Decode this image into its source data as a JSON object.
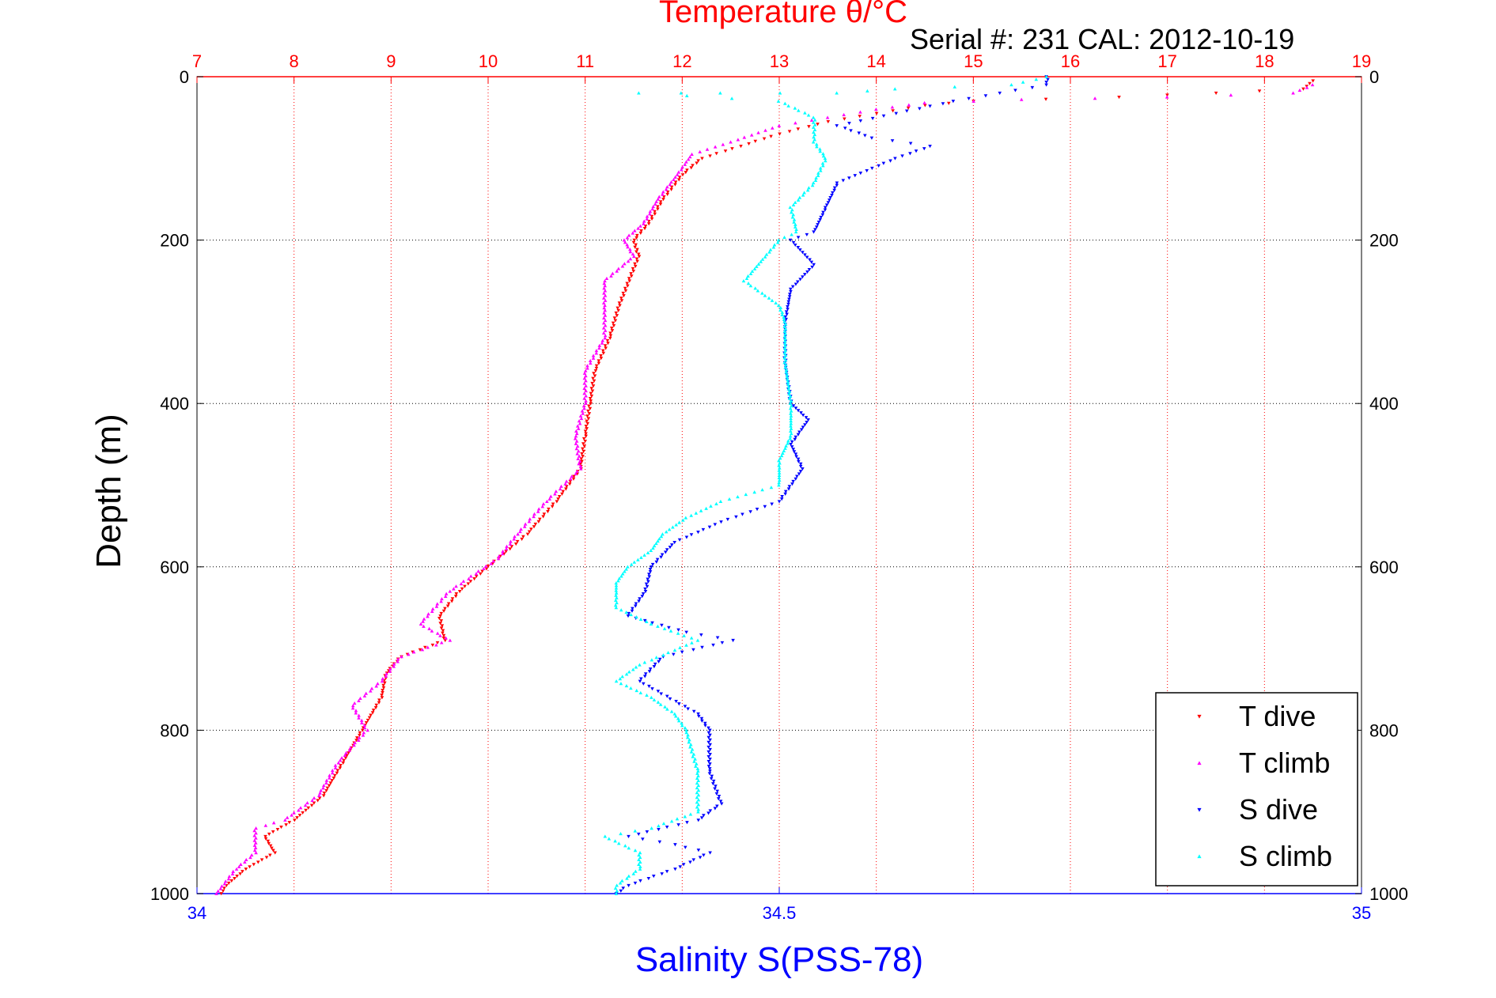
{
  "chart_data": {
    "type": "scatter",
    "title": "Temperature θ/°C",
    "serial_label": "Serial #: 231   CAL: 2012-10-19",
    "ylabel": "Depth (m)",
    "xlabel": "Salinity S(PSS-78)",
    "temperature_axis": {
      "range": [
        7,
        19
      ],
      "ticks": [
        7,
        8,
        9,
        10,
        11,
        12,
        13,
        14,
        15,
        16,
        17,
        18,
        19
      ]
    },
    "salinity_axis": {
      "range": [
        34,
        35
      ],
      "ticks": [
        "34",
        "34.5",
        "35"
      ]
    },
    "depth_axis": {
      "range": [
        0,
        1000
      ],
      "reversed": true,
      "ticks": [
        0,
        200,
        400,
        600,
        800,
        1000
      ]
    },
    "grid": true,
    "legend": {
      "placement": "bottom-right",
      "entries": [
        "T dive",
        "T climb",
        "S dive",
        "S climb"
      ]
    },
    "colors": {
      "temperature": "#ff0000",
      "salinity": "#0000ff",
      "t_dive": "#ff0000",
      "t_climb": "#ff00ff",
      "s_dive": "#0000ff",
      "s_climb": "#00ffff"
    },
    "series": [
      {
        "name": "T dive",
        "axis": "temperature",
        "color": "#ff0000",
        "marker": "triangle-down",
        "points": [
          [
            18.5,
            5
          ],
          [
            18.4,
            15
          ],
          [
            17.5,
            20
          ],
          [
            16.5,
            25
          ],
          [
            15,
            30
          ],
          [
            14.5,
            35
          ],
          [
            14,
            45
          ],
          [
            13.5,
            55
          ],
          [
            13,
            70
          ],
          [
            12.6,
            85
          ],
          [
            12.2,
            100
          ],
          [
            12,
            120
          ],
          [
            11.8,
            150
          ],
          [
            11.65,
            180
          ],
          [
            11.5,
            200
          ],
          [
            11.55,
            220
          ],
          [
            11.45,
            250
          ],
          [
            11.35,
            280
          ],
          [
            11.25,
            320
          ],
          [
            11.1,
            360
          ],
          [
            11.05,
            400
          ],
          [
            11.0,
            440
          ],
          [
            10.95,
            480
          ],
          [
            10.7,
            520
          ],
          [
            10.4,
            560
          ],
          [
            10.1,
            590
          ],
          [
            9.7,
            630
          ],
          [
            9.5,
            660
          ],
          [
            9.55,
            690
          ],
          [
            9.1,
            710
          ],
          [
            8.95,
            730
          ],
          [
            8.9,
            760
          ],
          [
            8.7,
            800
          ],
          [
            8.5,
            840
          ],
          [
            8.3,
            880
          ],
          [
            8.0,
            910
          ],
          [
            7.7,
            930
          ],
          [
            7.8,
            950
          ],
          [
            7.5,
            970
          ],
          [
            7.3,
            990
          ],
          [
            7.25,
            1000
          ]
        ]
      },
      {
        "name": "T climb",
        "axis": "temperature",
        "color": "#ff00ff",
        "marker": "triangle-up",
        "points": [
          [
            18.5,
            10
          ],
          [
            18.3,
            20
          ],
          [
            17,
            25
          ],
          [
            15.5,
            28
          ],
          [
            14.5,
            32
          ],
          [
            14,
            40
          ],
          [
            13.5,
            50
          ],
          [
            13,
            60
          ],
          [
            12.5,
            80
          ],
          [
            12.1,
            95
          ],
          [
            11.95,
            120
          ],
          [
            11.75,
            150
          ],
          [
            11.6,
            180
          ],
          [
            11.4,
            200
          ],
          [
            11.5,
            220
          ],
          [
            11.2,
            250
          ],
          [
            11.2,
            280
          ],
          [
            11.2,
            320
          ],
          [
            11.0,
            360
          ],
          [
            11.0,
            400
          ],
          [
            10.9,
            440
          ],
          [
            10.95,
            480
          ],
          [
            10.6,
            520
          ],
          [
            10.3,
            560
          ],
          [
            10.1,
            590
          ],
          [
            9.6,
            630
          ],
          [
            9.3,
            670
          ],
          [
            9.6,
            690
          ],
          [
            9.1,
            710
          ],
          [
            8.9,
            740
          ],
          [
            8.6,
            770
          ],
          [
            8.75,
            800
          ],
          [
            8.45,
            840
          ],
          [
            8.25,
            880
          ],
          [
            7.9,
            910
          ],
          [
            7.6,
            920
          ],
          [
            7.6,
            950
          ],
          [
            7.4,
            970
          ],
          [
            7.2,
            1000
          ]
        ]
      },
      {
        "name": "S dive",
        "axis": "salinity",
        "color": "#0000ff",
        "marker": "triangle-down",
        "points": [
          [
            34.73,
            0
          ],
          [
            34.73,
            10
          ],
          [
            34.69,
            20
          ],
          [
            34.65,
            30
          ],
          [
            34.55,
            60
          ],
          [
            34.58,
            75
          ],
          [
            34.63,
            85
          ],
          [
            34.6,
            100
          ],
          [
            34.55,
            130
          ],
          [
            34.54,
            160
          ],
          [
            34.53,
            190
          ],
          [
            34.51,
            200
          ],
          [
            34.53,
            230
          ],
          [
            34.51,
            260
          ],
          [
            34.505,
            300
          ],
          [
            34.505,
            350
          ],
          [
            34.51,
            400
          ],
          [
            34.525,
            420
          ],
          [
            34.51,
            450
          ],
          [
            34.52,
            480
          ],
          [
            34.5,
            520
          ],
          [
            34.45,
            545
          ],
          [
            34.41,
            570
          ],
          [
            34.39,
            600
          ],
          [
            34.385,
            630
          ],
          [
            34.37,
            660
          ],
          [
            34.42,
            680
          ],
          [
            34.46,
            690
          ],
          [
            34.4,
            710
          ],
          [
            34.38,
            740
          ],
          [
            34.43,
            780
          ],
          [
            34.44,
            800
          ],
          [
            34.44,
            850
          ],
          [
            34.45,
            890
          ],
          [
            34.43,
            910
          ],
          [
            34.37,
            930
          ],
          [
            34.41,
            940
          ],
          [
            34.44,
            950
          ],
          [
            34.41,
            970
          ],
          [
            34.37,
            990
          ],
          [
            34.36,
            1000
          ]
        ]
      },
      {
        "name": "S climb",
        "axis": "salinity",
        "color": "#00ffff",
        "marker": "triangle-up",
        "points": [
          [
            34.73,
            0
          ],
          [
            34.7,
            10
          ],
          [
            34.6,
            15
          ],
          [
            34.55,
            20
          ],
          [
            34.45,
            20
          ],
          [
            34.38,
            20
          ],
          [
            34.5,
            30
          ],
          [
            34.53,
            50
          ],
          [
            34.53,
            80
          ],
          [
            34.54,
            100
          ],
          [
            34.53,
            130
          ],
          [
            34.51,
            160
          ],
          [
            34.515,
            190
          ],
          [
            34.5,
            200
          ],
          [
            34.47,
            250
          ],
          [
            34.5,
            280
          ],
          [
            34.505,
            300
          ],
          [
            34.505,
            350
          ],
          [
            34.51,
            400
          ],
          [
            34.51,
            440
          ],
          [
            34.5,
            470
          ],
          [
            34.5,
            500
          ],
          [
            34.45,
            520
          ],
          [
            34.42,
            540
          ],
          [
            34.4,
            560
          ],
          [
            34.39,
            580
          ],
          [
            34.37,
            600
          ],
          [
            34.36,
            620
          ],
          [
            34.36,
            650
          ],
          [
            34.39,
            670
          ],
          [
            34.43,
            690
          ],
          [
            34.38,
            720
          ],
          [
            34.36,
            740
          ],
          [
            34.39,
            760
          ],
          [
            34.41,
            780
          ],
          [
            34.42,
            800
          ],
          [
            34.43,
            850
          ],
          [
            34.43,
            900
          ],
          [
            34.39,
            920
          ],
          [
            34.35,
            930
          ],
          [
            34.38,
            950
          ],
          [
            34.38,
            970
          ],
          [
            34.36,
            990
          ],
          [
            34.36,
            1000
          ]
        ]
      }
    ]
  }
}
